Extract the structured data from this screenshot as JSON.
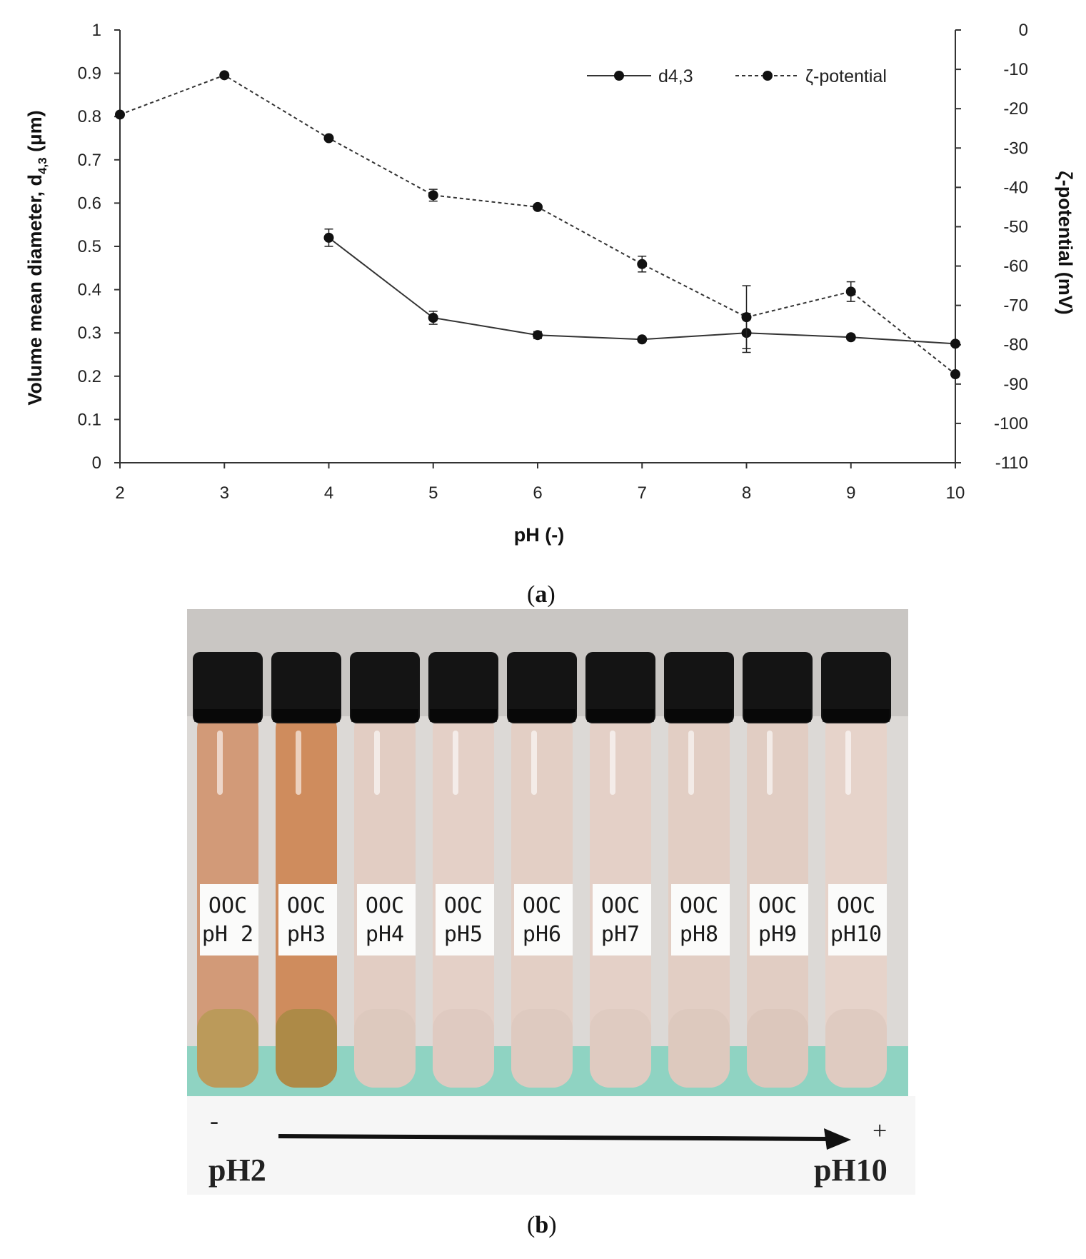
{
  "chart_data": {
    "type": "line",
    "x_label": "pH (-)",
    "y_left_label_main": "Volume mean diameter, d",
    "y_left_label_sub": "4,3",
    "y_left_label_unit": " (μm)",
    "y_right_label": "ζ-potential (mV)",
    "x_ticks": [
      "2",
      "3",
      "4",
      "5",
      "6",
      "7",
      "8",
      "9",
      "10"
    ],
    "y_left_ticks": [
      "0",
      "0.1",
      "0.2",
      "0.3",
      "0.4",
      "0.5",
      "0.6",
      "0.7",
      "0.8",
      "0.9",
      "1"
    ],
    "y_right_ticks": [
      "0",
      "-10",
      "-20",
      "-30",
      "-40",
      "-50",
      "-60",
      "-70",
      "-80",
      "-90",
      "-100",
      "-110"
    ],
    "x_range": [
      2,
      10
    ],
    "y_left_range": [
      0,
      1
    ],
    "y_right_range": [
      -110,
      0
    ],
    "grid": false,
    "legend_position": "top-right",
    "series": [
      {
        "name": "d4,3",
        "axis": "left",
        "style": "solid",
        "x": [
          4,
          5,
          6,
          7,
          8,
          9,
          10
        ],
        "y": [
          0.52,
          0.335,
          0.295,
          0.285,
          0.3,
          0.29,
          0.275
        ],
        "err": [
          0.02,
          0.015,
          0.008,
          0.005,
          0.045,
          0.005,
          0.005
        ]
      },
      {
        "name": "ζ-potential",
        "axis": "right",
        "style": "dashed",
        "x": [
          2,
          3,
          4,
          5,
          6,
          7,
          8,
          9,
          10
        ],
        "y": [
          -21.5,
          -11.5,
          -27.5,
          -42,
          -45,
          -59.5,
          -73,
          -66.5,
          -87.5
        ],
        "err": [
          0.3,
          0.3,
          0.5,
          1.5,
          0.5,
          2,
          8,
          2.5,
          0.5
        ]
      }
    ]
  },
  "panel_a_label": "a",
  "panel_b_label": "b",
  "photo": {
    "tubes": [
      {
        "line1": "OOC",
        "line2": "pH 2",
        "liquid": "#d29a78",
        "bottom": "#b79a55"
      },
      {
        "line1": "OOC",
        "line2": "pH3",
        "liquid": "#cf8c5d",
        "bottom": "#a78a43"
      },
      {
        "line1": "OOC",
        "line2": "pH4",
        "liquid": "#e2cdc3",
        "bottom": "#dcc8bd"
      },
      {
        "line1": "OOC",
        "line2": "pH5",
        "liquid": "#e4d0c7",
        "bottom": "#dec9bf"
      },
      {
        "line1": "OOC",
        "line2": "pH6",
        "liquid": "#e3cfc5",
        "bottom": "#ddc9be"
      },
      {
        "line1": "OOC",
        "line2": "pH7",
        "liquid": "#e4d0c7",
        "bottom": "#decabf"
      },
      {
        "line1": "OOC",
        "line2": "pH8",
        "liquid": "#e2cec4",
        "bottom": "#dcc8bd"
      },
      {
        "line1": "OOC",
        "line2": "pH9",
        "liquid": "#e1cdc3",
        "bottom": "#dbc6bb"
      },
      {
        "line1": "OOC",
        "line2": "pH10",
        "liquid": "#e6d3ca",
        "bottom": "#ddc9bf"
      }
    ],
    "scale_left": "pH2",
    "scale_right": "pH10",
    "sign_left": "-",
    "sign_right": "+"
  },
  "colors": {
    "line": "#333333",
    "marker": "#111111",
    "cap": "#141414",
    "rack": "#8fd3c2"
  }
}
